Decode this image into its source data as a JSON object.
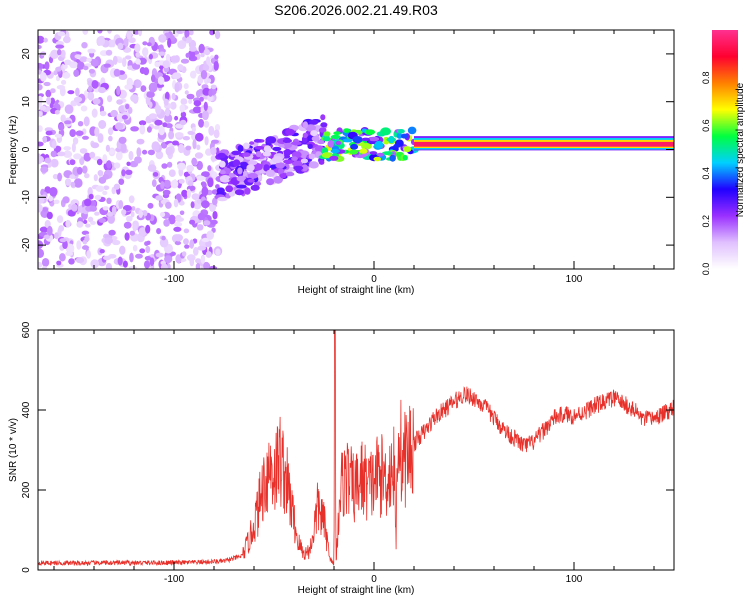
{
  "chart_data": [
    {
      "type": "heatmap",
      "title": "S206.2026.002.21.49.R03",
      "xlabel": "Height of straight line (km)",
      "ylabel": "Frequency (Hz)",
      "xlim": [
        -168,
        150
      ],
      "ylim": [
        -25,
        25
      ],
      "x_ticks": [
        -100,
        0,
        100
      ],
      "y_ticks": [
        -20,
        -10,
        0,
        10,
        20
      ],
      "colorbar": {
        "label": "Normalized spectral amplitude",
        "range": [
          0.0,
          1.0
        ],
        "ticks": [
          "0.0",
          "0.2",
          "0.4",
          "0.6",
          "0.8"
        ],
        "colors": [
          "#ffffff",
          "#e0c0ff",
          "#9a30ff",
          "#2000ff",
          "#00d0ff",
          "#00ff40",
          "#ffff00",
          "#ff8000",
          "#ff0030",
          "#ff3090"
        ]
      },
      "description_regions": [
        {
          "x_range": [
            -168,
            -78
          ],
          "freq_range": [
            -25,
            25
          ],
          "amplitude": 0.1,
          "note": "sparse noise speckle"
        },
        {
          "x_range": [
            -78,
            -25
          ],
          "freq_range": [
            -8,
            8
          ],
          "amplitude": 0.25,
          "note": "clustered blobs"
        },
        {
          "x_range": [
            -25,
            20
          ],
          "freq_range": [
            -2,
            4
          ],
          "amplitude": 0.55,
          "note": "emerging band"
        },
        {
          "x_range": [
            20,
            150
          ],
          "freq_range": [
            0,
            3
          ],
          "amplitude": 0.9,
          "note": "strong band near 1 Hz"
        }
      ]
    },
    {
      "type": "line",
      "xlabel": "Height of straight line (km)",
      "ylabel": "SNR (10 * v/v)",
      "xlim": [
        -168,
        150
      ],
      "ylim": [
        0,
        600
      ],
      "x_ticks": [
        -100,
        0,
        100
      ],
      "y_ticks": [
        0,
        200,
        400,
        600
      ],
      "series": [
        {
          "name": "SNR",
          "color": "#e8302a",
          "x": [
            -168,
            -150,
            -130,
            -110,
            -90,
            -75,
            -66,
            -62,
            -58,
            -55,
            -52,
            -50,
            -47,
            -44,
            -41,
            -38,
            -35,
            -32,
            -28,
            -25,
            -22,
            -20,
            -19.5,
            -19,
            -17,
            -14,
            -10,
            -6,
            -2,
            2,
            6,
            10,
            11,
            12,
            14,
            18,
            22,
            26,
            30,
            35,
            40,
            45,
            50,
            55,
            60,
            65,
            70,
            75,
            80,
            85,
            90,
            95,
            100,
            105,
            110,
            115,
            120,
            125,
            130,
            135,
            140,
            145,
            150
          ],
          "values": [
            18,
            17,
            18,
            18,
            19,
            22,
            35,
            80,
            150,
            220,
            260,
            240,
            280,
            230,
            150,
            70,
            40,
            50,
            160,
            120,
            30,
            10,
            600,
            20,
            200,
            240,
            200,
            230,
            210,
            240,
            230,
            260,
            60,
            380,
            270,
            300,
            330,
            350,
            380,
            400,
            420,
            440,
            430,
            410,
            380,
            350,
            330,
            310,
            320,
            350,
            380,
            390,
            385,
            395,
            410,
            420,
            430,
            415,
            400,
            375,
            380,
            390,
            410
          ]
        }
      ]
    }
  ]
}
